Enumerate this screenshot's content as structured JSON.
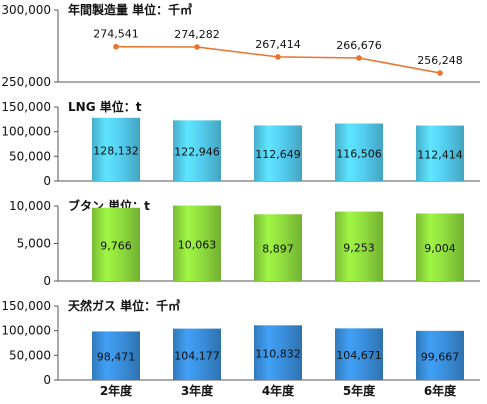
{
  "chart_data": [
    {
      "type": "line",
      "title": "年間製造量 単位：千㎥",
      "categories": [
        "2年度",
        "3年度",
        "4年度",
        "5年度",
        "6年度"
      ],
      "values": [
        274541,
        274282,
        267414,
        266676,
        256248
      ],
      "value_labels": [
        "274,541",
        "274,282",
        "267,414",
        "266,676",
        "256,248"
      ],
      "ylim": [
        250000,
        300000
      ],
      "yticks": [
        250000,
        300000
      ],
      "ytick_labels": [
        "250,000",
        "300,000"
      ],
      "color": "#e8732a"
    },
    {
      "type": "bar",
      "title": "LNG 単位：t",
      "categories": [
        "2年度",
        "3年度",
        "4年度",
        "5年度",
        "6年度"
      ],
      "values": [
        128132,
        122946,
        112649,
        116506,
        112414
      ],
      "value_labels": [
        "128,132",
        "122,946",
        "112,649",
        "116,506",
        "112,414"
      ],
      "ylim": [
        0,
        150000
      ],
      "yticks": [
        0,
        50000,
        100000,
        150000
      ],
      "ytick_labels": [
        "0",
        "50,000",
        "100,000",
        "150,000"
      ],
      "color": "#54cdef"
    },
    {
      "type": "bar",
      "title": "ブタン 単位：t",
      "categories": [
        "2年度",
        "3年度",
        "4年度",
        "5年度",
        "6年度"
      ],
      "values": [
        9766,
        10063,
        8897,
        9253,
        9004
      ],
      "value_labels": [
        "9,766",
        "10,063",
        "8,897",
        "9,253",
        "9,004"
      ],
      "ylim": [
        0,
        10000
      ],
      "yticks": [
        0,
        5000,
        10000
      ],
      "ytick_labels": [
        "0",
        "5,000",
        "10,000"
      ],
      "color": "#8fdc3e"
    },
    {
      "type": "bar",
      "title": "天然ガス 単位：千㎥",
      "categories": [
        "2年度",
        "3年度",
        "4年度",
        "5年度",
        "6年度"
      ],
      "values": [
        98471,
        104177,
        110832,
        104671,
        99667
      ],
      "value_labels": [
        "98,471",
        "104,177",
        "110,832",
        "104,671",
        "99,667"
      ],
      "ylim": [
        0,
        150000
      ],
      "yticks": [
        0,
        50000,
        100000,
        150000
      ],
      "ytick_labels": [
        "0",
        "50,000",
        "100,000",
        "150,000"
      ],
      "color": "#3a8fdc"
    }
  ],
  "x_axis": {
    "categories": [
      "2年度",
      "3年度",
      "4年度",
      "5年度",
      "6年度"
    ]
  }
}
